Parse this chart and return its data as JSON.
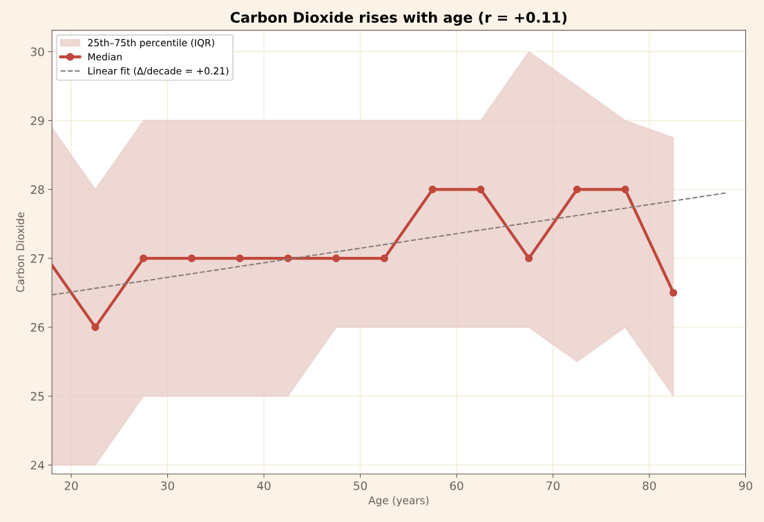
{
  "chart_data": {
    "type": "line",
    "title": "Carbon Dioxide rises with age (r = +0.11)",
    "xlabel": "Age (years)",
    "ylabel": "Carbon Dioxide",
    "xlim": [
      18,
      90
    ],
    "xticks": [
      20,
      30,
      40,
      50,
      60,
      70,
      80,
      90
    ],
    "ylim": [
      23.87,
      30.31
    ],
    "yticks": [
      24,
      25,
      26,
      27,
      28,
      29,
      30
    ],
    "grid": true,
    "legend": "top left",
    "series": [
      {
        "type": "area",
        "name": "25th–75th percentile (IQR)",
        "color": "#e8cbc6"
      },
      {
        "name": "Median",
        "color": "#c0473b",
        "marker": "circle",
        "line_style": "solid",
        "x": [
          18,
          22.5,
          27.5,
          32.5,
          37.5,
          42.5,
          47.5,
          52.5,
          57.5,
          62.5,
          67.5,
          72.5,
          77.5,
          82.5
        ],
        "values": [
          26.9,
          26,
          27,
          27,
          27,
          27,
          27,
          27,
          28,
          28,
          27,
          28,
          28,
          26.5
        ],
        "lower": [
          24,
          24,
          25,
          25,
          25,
          25,
          26,
          26,
          26,
          26,
          26,
          25.5,
          26,
          25
        ],
        "upper": [
          28.9,
          28,
          29,
          29,
          29,
          29,
          29,
          29,
          29,
          29,
          30,
          29.5,
          29,
          28.75
        ]
      },
      {
        "type": "line",
        "name": "Linear fit (Δ/decade = +0.21)",
        "color": "#857a7a",
        "marker": "none",
        "line_style": "dashed",
        "x": [
          18,
          88
        ],
        "values": [
          26.47,
          27.95
        ]
      }
    ]
  }
}
